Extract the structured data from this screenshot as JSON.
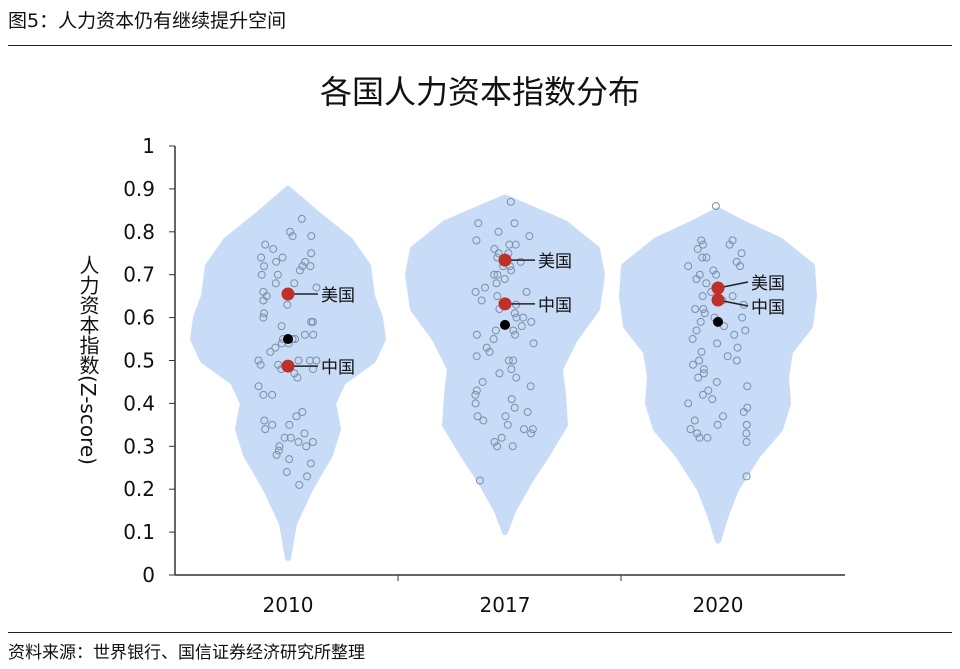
{
  "figure_title": "图5：人力资本仍有继续提升空间",
  "source": "资料来源：世界银行、国信证券经济研究所整理",
  "chart_data": {
    "type": "violin",
    "title": "各国人力资本指数分布",
    "ylabel": "人力资本指数(Z-score)",
    "ylim": [
      0,
      1
    ],
    "yticks": [
      "0",
      "0.1",
      "0.2",
      "0.3",
      "0.4",
      "0.5",
      "0.6",
      "0.7",
      "0.8",
      "0.9",
      "1"
    ],
    "categories": [
      "2010",
      "2017",
      "2020"
    ],
    "fill_color": "#c9dcf7",
    "point_color": "#7a8fa8",
    "highlight_color": "#c0302a",
    "median_color": "#000000",
    "violins": [
      {
        "year": "2010",
        "profile": [
          [
            0.04,
            0
          ],
          [
            0.12,
            6
          ],
          [
            0.2,
            22
          ],
          [
            0.28,
            42
          ],
          [
            0.34,
            50
          ],
          [
            0.4,
            45
          ],
          [
            0.45,
            55
          ],
          [
            0.5,
            85
          ],
          [
            0.55,
            95
          ],
          [
            0.6,
            92
          ],
          [
            0.65,
            84
          ],
          [
            0.72,
            80
          ],
          [
            0.78,
            62
          ],
          [
            0.84,
            30
          ],
          [
            0.9,
            0
          ]
        ],
        "points": [
          0.83,
          0.79,
          0.79,
          0.8,
          0.77,
          0.75,
          0.76,
          0.74,
          0.74,
          0.73,
          0.73,
          0.72,
          0.72,
          0.72,
          0.71,
          0.7,
          0.7,
          0.68,
          0.68,
          0.67,
          0.66,
          0.65,
          0.64,
          0.63,
          0.61,
          0.6,
          0.59,
          0.59,
          0.58,
          0.56,
          0.56,
          0.55,
          0.55,
          0.55,
          0.55,
          0.54,
          0.54,
          0.53,
          0.52,
          0.5,
          0.5,
          0.5,
          0.5,
          0.49,
          0.49,
          0.48,
          0.48,
          0.47,
          0.46,
          0.44,
          0.42,
          0.42,
          0.38,
          0.37,
          0.36,
          0.35,
          0.35,
          0.34,
          0.33,
          0.32,
          0.32,
          0.31,
          0.31,
          0.3,
          0.3,
          0.29,
          0.28,
          0.27,
          0.26,
          0.24,
          0.23,
          0.21
        ],
        "median": 0.55,
        "usa": 0.655,
        "china": 0.487
      },
      {
        "year": "2017",
        "profile": [
          [
            0.1,
            0
          ],
          [
            0.15,
            8
          ],
          [
            0.22,
            25
          ],
          [
            0.28,
            42
          ],
          [
            0.35,
            60
          ],
          [
            0.42,
            58
          ],
          [
            0.48,
            55
          ],
          [
            0.55,
            70
          ],
          [
            0.62,
            92
          ],
          [
            0.7,
            97
          ],
          [
            0.76,
            92
          ],
          [
            0.82,
            60
          ],
          [
            0.86,
            20
          ],
          [
            0.88,
            0
          ]
        ],
        "points": [
          0.87,
          0.82,
          0.82,
          0.8,
          0.79,
          0.78,
          0.77,
          0.77,
          0.76,
          0.75,
          0.75,
          0.74,
          0.73,
          0.72,
          0.72,
          0.71,
          0.7,
          0.7,
          0.69,
          0.68,
          0.67,
          0.66,
          0.66,
          0.65,
          0.64,
          0.63,
          0.62,
          0.61,
          0.6,
          0.6,
          0.59,
          0.58,
          0.57,
          0.57,
          0.56,
          0.56,
          0.55,
          0.54,
          0.53,
          0.52,
          0.51,
          0.5,
          0.5,
          0.48,
          0.47,
          0.46,
          0.45,
          0.44,
          0.43,
          0.42,
          0.41,
          0.4,
          0.39,
          0.38,
          0.37,
          0.37,
          0.36,
          0.35,
          0.34,
          0.34,
          0.33,
          0.32,
          0.31,
          0.3,
          0.3,
          0.22
        ],
        "median": 0.583,
        "usa": 0.734,
        "china": 0.632
      },
      {
        "year": "2020",
        "profile": [
          [
            0.08,
            0
          ],
          [
            0.14,
            8
          ],
          [
            0.2,
            18
          ],
          [
            0.28,
            40
          ],
          [
            0.34,
            62
          ],
          [
            0.4,
            70
          ],
          [
            0.46,
            68
          ],
          [
            0.52,
            72
          ],
          [
            0.58,
            92
          ],
          [
            0.65,
            96
          ],
          [
            0.72,
            94
          ],
          [
            0.78,
            62
          ],
          [
            0.82,
            25
          ],
          [
            0.85,
            0
          ]
        ],
        "points": [
          0.86,
          0.78,
          0.78,
          0.77,
          0.77,
          0.76,
          0.75,
          0.74,
          0.74,
          0.73,
          0.72,
          0.72,
          0.71,
          0.7,
          0.7,
          0.69,
          0.68,
          0.67,
          0.66,
          0.65,
          0.65,
          0.64,
          0.63,
          0.62,
          0.62,
          0.61,
          0.6,
          0.6,
          0.59,
          0.58,
          0.57,
          0.57,
          0.56,
          0.55,
          0.54,
          0.53,
          0.52,
          0.51,
          0.5,
          0.5,
          0.49,
          0.48,
          0.47,
          0.46,
          0.45,
          0.44,
          0.43,
          0.42,
          0.41,
          0.4,
          0.39,
          0.38,
          0.37,
          0.36,
          0.35,
          0.35,
          0.34,
          0.33,
          0.33,
          0.32,
          0.32,
          0.31,
          0.23
        ],
        "median": 0.59,
        "usa": 0.669,
        "china": 0.641
      }
    ],
    "labels": {
      "usa": "美国",
      "china": "中国"
    }
  }
}
